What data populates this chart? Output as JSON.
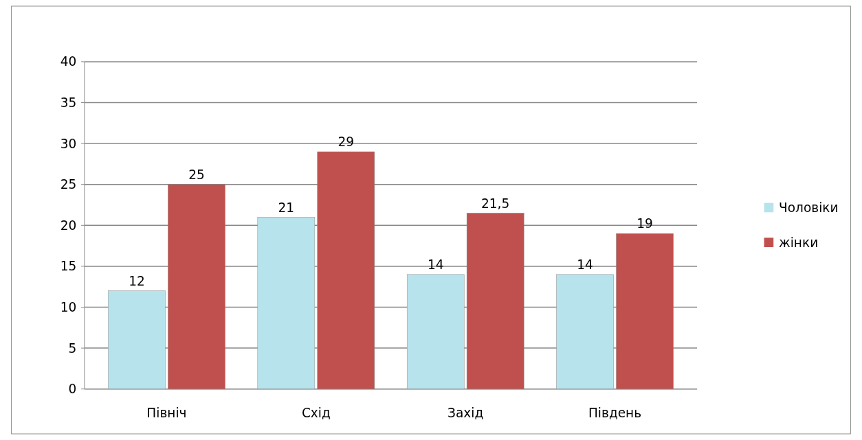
{
  "chart_data": {
    "type": "bar",
    "categories": [
      "Північ",
      "Схід",
      "Захід",
      "Південь"
    ],
    "series": [
      {
        "name": "Чоловіки",
        "color": "#b7e3ec",
        "values": [
          12,
          21,
          14,
          14
        ],
        "value_labels": [
          "12",
          "21",
          "14",
          "14"
        ]
      },
      {
        "name": "жінки",
        "color": "#c0504d",
        "values": [
          25,
          29,
          21.5,
          19
        ],
        "value_labels": [
          "25",
          "29",
          "21,5",
          "19"
        ]
      }
    ],
    "ylim": [
      0,
      40
    ],
    "yticks": [
      0,
      5,
      10,
      15,
      20,
      25,
      30,
      35,
      40
    ],
    "grid": "y",
    "legend": "right"
  }
}
